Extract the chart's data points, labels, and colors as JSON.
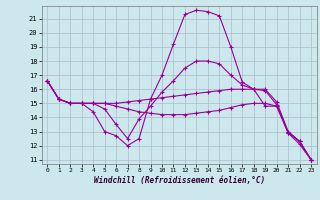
{
  "xlabel": "Windchill (Refroidissement éolien,°C)",
  "background_color": "#cce8ec",
  "grid_color": "#aabbcc",
  "line_color": "#990099",
  "xlim": [
    -0.5,
    23.5
  ],
  "ylim": [
    10.7,
    21.9
  ],
  "yticks": [
    11,
    12,
    13,
    14,
    15,
    16,
    17,
    18,
    19,
    20,
    21
  ],
  "xticks": [
    0,
    1,
    2,
    3,
    4,
    5,
    6,
    7,
    8,
    9,
    10,
    11,
    12,
    13,
    14,
    15,
    16,
    17,
    18,
    19,
    20,
    21,
    22,
    23
  ],
  "series": [
    [
      16.6,
      15.3,
      15.0,
      15.0,
      14.4,
      13.0,
      12.7,
      12.0,
      12.5,
      15.3,
      17.0,
      19.2,
      21.3,
      21.6,
      21.5,
      21.2,
      19.0,
      16.5,
      16.0,
      15.9,
      14.9,
      12.9,
      12.1,
      11.0
    ],
    [
      16.6,
      15.3,
      15.0,
      15.0,
      15.0,
      15.0,
      15.0,
      15.1,
      15.2,
      15.3,
      15.4,
      15.5,
      15.6,
      15.7,
      15.8,
      15.9,
      16.0,
      16.0,
      16.0,
      16.0,
      15.1,
      13.0,
      12.3,
      11.0
    ],
    [
      16.6,
      15.3,
      15.0,
      15.0,
      15.0,
      15.0,
      14.8,
      14.6,
      14.4,
      14.3,
      14.2,
      14.2,
      14.2,
      14.3,
      14.4,
      14.5,
      14.7,
      14.9,
      15.0,
      15.0,
      14.8,
      13.0,
      12.3,
      11.0
    ],
    [
      16.6,
      15.3,
      15.0,
      15.0,
      15.0,
      14.6,
      13.5,
      12.5,
      13.9,
      14.8,
      15.8,
      16.6,
      17.5,
      18.0,
      18.0,
      17.8,
      17.0,
      16.3,
      16.0,
      14.8,
      14.8,
      12.9,
      12.3,
      11.0
    ]
  ]
}
